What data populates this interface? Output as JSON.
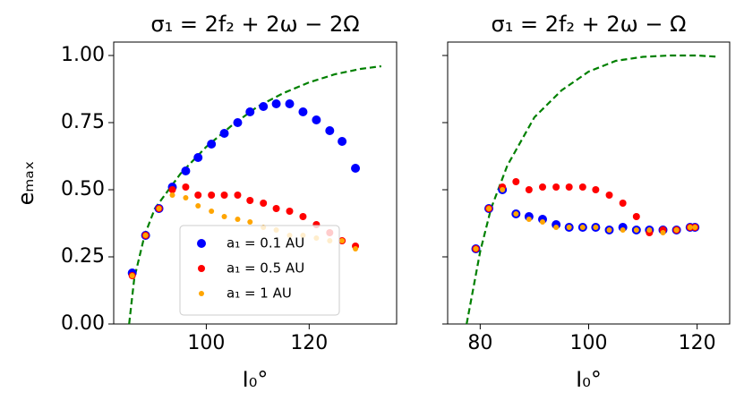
{
  "chart_data": [
    {
      "type": "scatter",
      "title": "σ₁ = 2f₂ + 2ω − 2Ω",
      "xlabel": "I₀°",
      "ylabel": "eₘₐₓ",
      "xlim": [
        82,
        137
      ],
      "ylim": [
        0,
        1.05
      ],
      "xticks": [
        100,
        120
      ],
      "yticks": [
        {
          "value": 0,
          "label": "0.00"
        },
        {
          "value": 0.25,
          "label": "0.25"
        },
        {
          "value": 0.5,
          "label": "0.50"
        },
        {
          "value": 0.75,
          "label": "0.75"
        },
        {
          "value": 1,
          "label": "1.00"
        }
      ],
      "ytick_labels": true,
      "legend": "lower center",
      "series": [
        {
          "name": "a₁ = 0.1 AU",
          "color": "#0000ff",
          "marker_size": 5,
          "x": [
            85.6,
            88.2,
            90.8,
            93.4,
            96.0,
            98.4,
            101.0,
            103.5,
            106.1,
            108.5,
            111.1,
            113.6,
            116.2,
            118.8,
            121.4,
            124.0,
            126.4,
            129.0
          ],
          "values": [
            0.19,
            0.33,
            0.43,
            0.51,
            0.57,
            0.62,
            0.67,
            0.71,
            0.75,
            0.79,
            0.81,
            0.82,
            0.82,
            0.79,
            0.76,
            0.72,
            0.68,
            0.58
          ]
        },
        {
          "name": "a₁ = 0.5 AU",
          "color": "#ff0000",
          "marker_size": 4,
          "x": [
            85.6,
            88.2,
            90.8,
            93.4,
            96.0,
            98.4,
            101.0,
            103.5,
            106.1,
            108.5,
            111.1,
            113.6,
            116.2,
            118.8,
            121.4,
            124.0,
            126.4,
            129.0
          ],
          "values": [
            0.18,
            0.33,
            0.43,
            0.5,
            0.51,
            0.48,
            0.48,
            0.48,
            0.48,
            0.46,
            0.45,
            0.43,
            0.42,
            0.4,
            0.37,
            0.34,
            0.31,
            0.29
          ]
        },
        {
          "name": "a₁ = 1 AU",
          "color": "#ffa500",
          "marker_size": 3,
          "x": [
            85.6,
            88.2,
            90.8,
            93.4,
            96.0,
            98.4,
            101.0,
            103.5,
            106.1,
            108.5,
            111.1,
            113.6,
            116.2,
            118.8,
            121.4,
            124.0,
            126.4,
            129.0
          ],
          "values": [
            0.18,
            0.33,
            0.43,
            0.48,
            0.47,
            0.44,
            0.42,
            0.4,
            0.39,
            0.38,
            0.36,
            0.35,
            0.33,
            0.33,
            0.32,
            0.31,
            0.31,
            0.28
          ]
        }
      ],
      "curve": {
        "color": "#008000",
        "style": "dashed",
        "x": [
          85,
          86,
          88,
          90,
          95,
          100,
          105,
          110,
          115,
          120,
          125,
          130,
          134
        ],
        "values": [
          0,
          0.17,
          0.33,
          0.43,
          0.56,
          0.66,
          0.74,
          0.81,
          0.86,
          0.9,
          0.93,
          0.95,
          0.96
        ]
      }
    },
    {
      "type": "scatter",
      "title": "σ₁ = 2f₂ + 2ω − Ω",
      "xlabel": "I₀°",
      "xlim": [
        74,
        126
      ],
      "ylim": [
        0,
        1.05
      ],
      "xticks": [
        80,
        100,
        120
      ],
      "yticks": [
        0,
        0.25,
        0.5,
        0.75,
        1
      ],
      "ytick_labels": false,
      "series": [
        {
          "color": "#0000ff",
          "marker_size": 5,
          "x": [
            79.2,
            81.6,
            84.1,
            86.6,
            89.0,
            91.5,
            94.0,
            96.4,
            98.9,
            101.3,
            103.8,
            106.3,
            108.8,
            111.2,
            113.7,
            116.2,
            118.7,
            119.6
          ],
          "values": [
            0.28,
            0.43,
            0.5,
            0.41,
            0.4,
            0.39,
            0.37,
            0.36,
            0.36,
            0.36,
            0.35,
            0.36,
            0.35,
            0.35,
            0.35,
            0.35,
            0.36,
            0.36
          ]
        },
        {
          "color": "#ff0000",
          "marker_size": 4,
          "x": [
            79.2,
            81.6,
            84.1,
            86.6,
            89.0,
            91.5,
            94.0,
            96.4,
            98.9,
            101.3,
            103.8,
            106.3,
            108.8,
            111.2,
            113.7,
            116.2,
            118.7,
            119.6
          ],
          "values": [
            0.28,
            0.43,
            0.51,
            0.53,
            0.5,
            0.51,
            0.51,
            0.51,
            0.51,
            0.5,
            0.48,
            0.45,
            0.4,
            0.34,
            0.35,
            0.35,
            0.36,
            0.36
          ]
        },
        {
          "color": "#ffa500",
          "marker_size": 3,
          "x": [
            79.2,
            81.6,
            84.1,
            86.6,
            89.0,
            91.5,
            94.0,
            96.4,
            98.9,
            101.3,
            103.8,
            106.3,
            108.8,
            111.2,
            113.7,
            116.2,
            118.7,
            119.6
          ],
          "values": [
            0.28,
            0.43,
            0.5,
            0.41,
            0.39,
            0.38,
            0.36,
            0.36,
            0.36,
            0.36,
            0.35,
            0.35,
            0.35,
            0.35,
            0.34,
            0.35,
            0.36,
            0.36
          ]
        }
      ],
      "curve": {
        "color": "#008000",
        "style": "dashed",
        "x": [
          77.5,
          80,
          82,
          85,
          90,
          95,
          100,
          105,
          110,
          115,
          120,
          124
        ],
        "values": [
          0,
          0.27,
          0.43,
          0.59,
          0.77,
          0.87,
          0.94,
          0.98,
          0.995,
          1,
          1,
          0.995
        ]
      }
    }
  ]
}
